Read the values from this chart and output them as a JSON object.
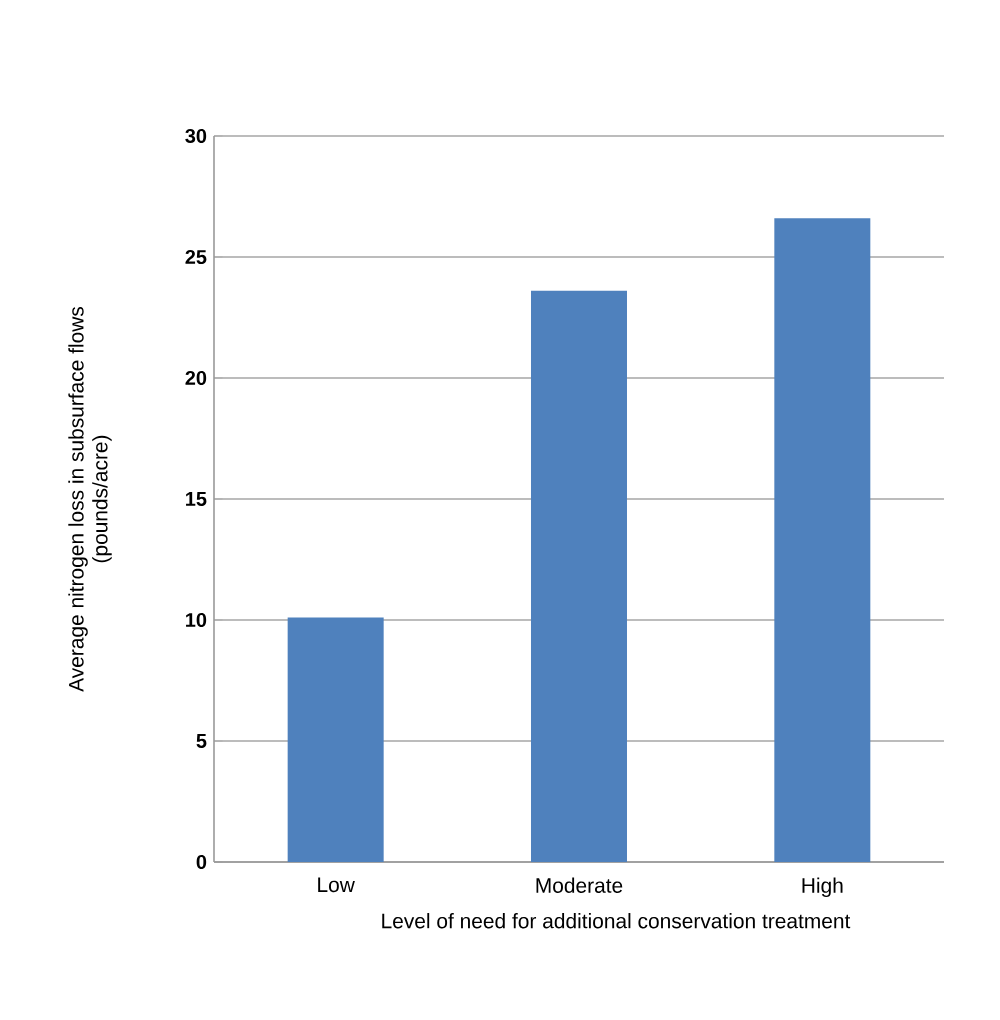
{
  "chart_data": {
    "type": "bar",
    "xlabel": "Level of need for additional conservation treatment",
    "ylabel": "Average nitrogen loss in subsurface flows (pounds/acre)",
    "categories": [
      "Low",
      "Moderate",
      "High"
    ],
    "values": [
      10.1,
      23.6,
      26.6
    ],
    "color": "#4f81bd",
    "ylim": [
      0,
      30
    ],
    "yticks": [
      0,
      5,
      10,
      15,
      20,
      25,
      30
    ],
    "grid": "y"
  }
}
